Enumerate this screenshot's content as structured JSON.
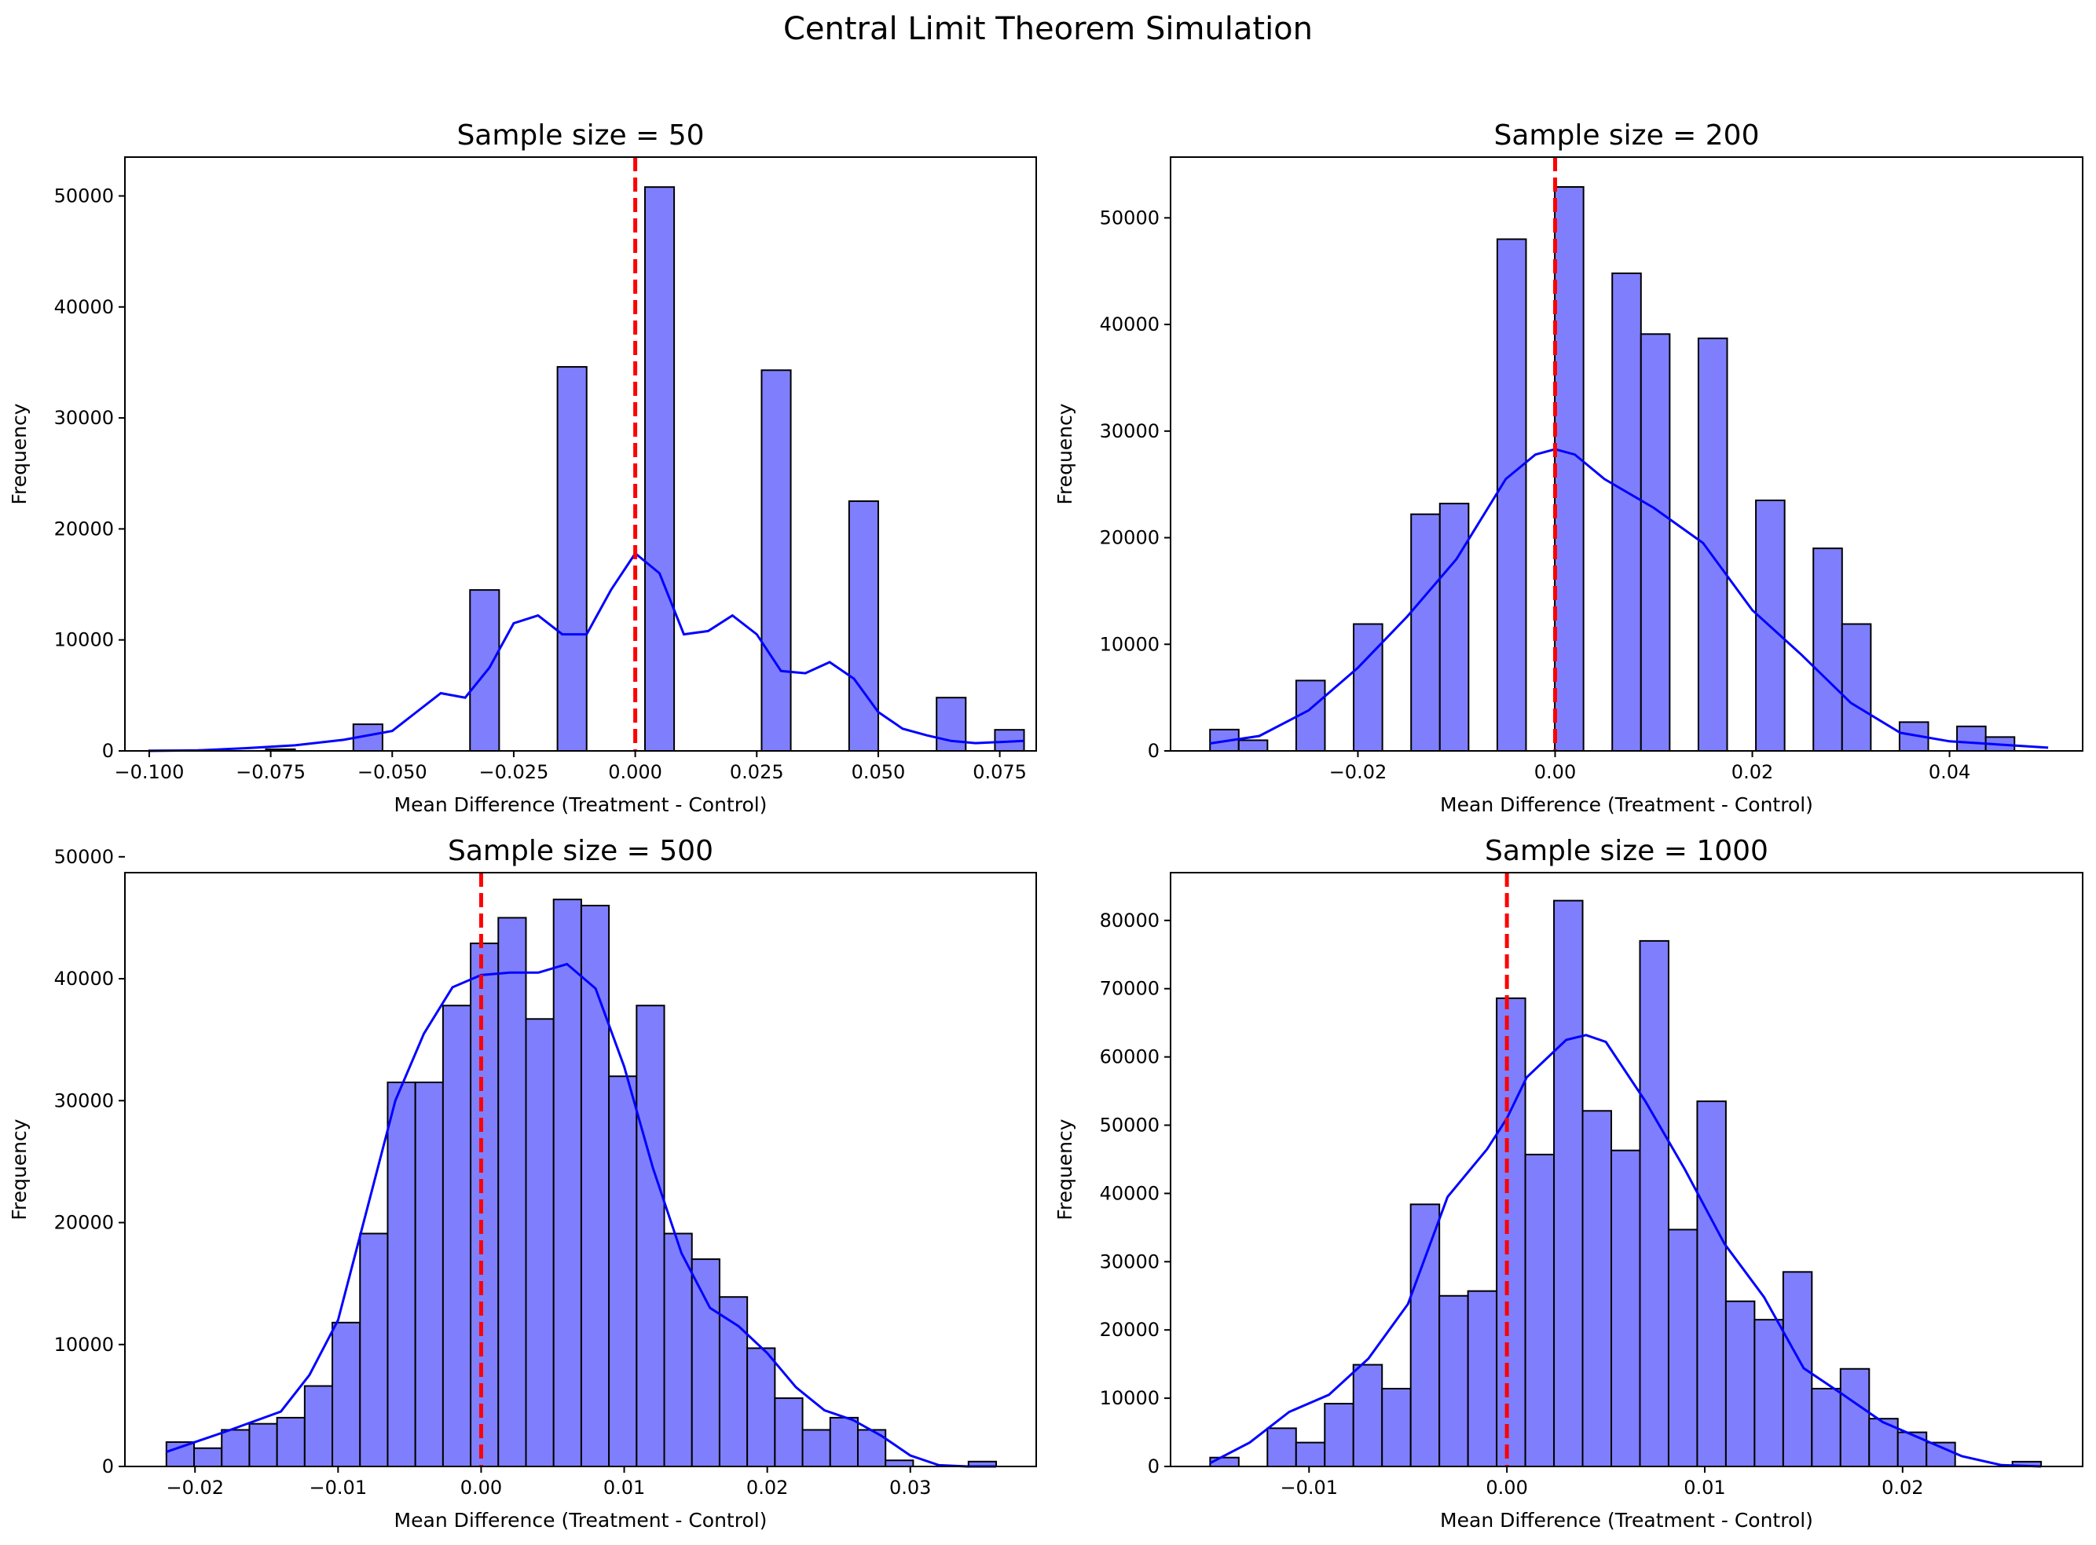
{
  "suptitle": "Central Limit Theorem Simulation",
  "colors": {
    "bar_fill": "#7f7ffe",
    "bar_edge": "#000000",
    "kde_line": "#0000ff",
    "zero_line": "#ff0000"
  },
  "chart_data": [
    {
      "type": "bar",
      "title": "Sample size = 50",
      "xlabel": "Mean Difference (Treatment - Control)",
      "ylabel": "Frequency",
      "xlim": [
        -0.105,
        0.0825
      ],
      "ylim": [
        0,
        53500
      ],
      "xticks": [
        -0.1,
        -0.075,
        -0.05,
        -0.025,
        0.0,
        0.025,
        0.05,
        0.075
      ],
      "xtick_labels": [
        "−0.100",
        "−0.075",
        "−0.050",
        "−0.025",
        "0.000",
        "0.025",
        "0.050",
        "0.075"
      ],
      "yticks": [
        0,
        10000,
        20000,
        30000,
        40000,
        50000
      ],
      "ytick_labels": [
        "0",
        "10000",
        "20000",
        "30000",
        "40000",
        "50000"
      ],
      "bins": {
        "start": -0.1,
        "end": 0.08,
        "count": 30
      },
      "counts": [
        50,
        0,
        0,
        0,
        150,
        0,
        0,
        2400,
        0,
        0,
        0,
        14500,
        0,
        0,
        34600,
        0,
        0,
        50800,
        0,
        0,
        0,
        34300,
        0,
        0,
        22500,
        0,
        0,
        4800,
        0,
        1900
      ],
      "kde_x": [
        -0.1,
        -0.09,
        -0.08,
        -0.07,
        -0.06,
        -0.05,
        -0.045,
        -0.04,
        -0.035,
        -0.03,
        -0.025,
        -0.02,
        -0.015,
        -0.01,
        -0.005,
        0.0,
        0.005,
        0.01,
        0.015,
        0.02,
        0.025,
        0.03,
        0.035,
        0.04,
        0.045,
        0.05,
        0.055,
        0.06,
        0.065,
        0.07,
        0.075,
        0.08
      ],
      "kde_y": [
        0,
        50,
        250,
        500,
        1000,
        1800,
        3500,
        5200,
        4800,
        7500,
        11500,
        12200,
        10500,
        10500,
        14500,
        17800,
        16000,
        10500,
        10800,
        12200,
        10500,
        7200,
        7000,
        8000,
        6500,
        3500,
        2000,
        1400,
        900,
        700,
        800,
        900
      ],
      "vline_x": 0.0
    },
    {
      "type": "bar",
      "title": "Sample size = 200",
      "xlabel": "Mean Difference (Treatment - Control)",
      "ylabel": "Frequency",
      "xlim": [
        -0.039,
        0.0535
      ],
      "ylim": [
        0,
        55700
      ],
      "xticks": [
        -0.02,
        0.0,
        0.02,
        0.04
      ],
      "xtick_labels": [
        "−0.02",
        "0.00",
        "0.02",
        "0.04"
      ],
      "yticks": [
        0,
        10000,
        20000,
        30000,
        40000,
        50000
      ],
      "ytick_labels": [
        "0",
        "10000",
        "20000",
        "30000",
        "40000",
        "50000"
      ],
      "bins": {
        "start": -0.035,
        "end": 0.0495,
        "count": 29
      },
      "counts": [
        2000,
        1000,
        0,
        6600,
        0,
        11900,
        0,
        22200,
        23200,
        0,
        48000,
        0,
        52900,
        0,
        44800,
        39100,
        0,
        38700,
        0,
        23500,
        0,
        19000,
        11900,
        0,
        2700,
        0,
        2300,
        1300,
        0
      ],
      "kde_x": [
        -0.035,
        -0.03,
        -0.025,
        -0.02,
        -0.015,
        -0.01,
        -0.005,
        -0.002,
        0.0,
        0.002,
        0.005,
        0.01,
        0.015,
        0.02,
        0.025,
        0.03,
        0.035,
        0.04,
        0.045,
        0.05
      ],
      "kde_y": [
        700,
        1400,
        3800,
        7800,
        12600,
        18000,
        25500,
        27800,
        28300,
        27800,
        25500,
        22800,
        19500,
        13200,
        9000,
        4500,
        1700,
        900,
        600,
        300
      ],
      "vline_x": 0.0
    },
    {
      "type": "bar",
      "title": "Sample size = 500",
      "xlabel": "Mean Difference (Treatment - Control)",
      "ylabel": "Frequency",
      "xlim": [
        -0.0249,
        0.0388
      ],
      "ylim": [
        0,
        48700
      ],
      "xticks": [
        -0.02,
        -0.01,
        0.0,
        0.01,
        0.02,
        0.03
      ],
      "xtick_labels": [
        "−0.02",
        "−0.01",
        "0.00",
        "0.01",
        "0.02",
        "0.03"
      ],
      "yticks": [
        0,
        10000,
        20000,
        30000,
        40000,
        50000
      ],
      "ytick_labels": [
        "0",
        "10000",
        "20000",
        "30000",
        "40000",
        "50000"
      ],
      "bins": {
        "start": -0.022,
        "end": 0.036,
        "count": 30
      },
      "counts": [
        2000,
        1500,
        3000,
        3500,
        4000,
        6600,
        11800,
        19100,
        31500,
        31500,
        37800,
        42900,
        45000,
        36700,
        46500,
        46000,
        32000,
        37800,
        19100,
        17000,
        13900,
        9700,
        5600,
        3000,
        4000,
        3000,
        500,
        0,
        0,
        400
      ],
      "kde_x": [
        -0.022,
        -0.018,
        -0.014,
        -0.012,
        -0.01,
        -0.008,
        -0.006,
        -0.004,
        -0.002,
        0.0,
        0.002,
        0.004,
        0.006,
        0.008,
        0.01,
        0.012,
        0.014,
        0.016,
        0.018,
        0.02,
        0.022,
        0.024,
        0.026,
        0.028,
        0.03,
        0.032,
        0.034,
        0.036
      ],
      "kde_y": [
        1200,
        2800,
        4500,
        7500,
        12000,
        21000,
        30000,
        35500,
        39300,
        40300,
        40500,
        40500,
        41200,
        39200,
        32800,
        24500,
        17500,
        13000,
        11500,
        9300,
        6500,
        4600,
        3800,
        2500,
        900,
        100,
        0,
        0
      ],
      "vline_x": 0.0
    },
    {
      "type": "bar",
      "title": "Sample size = 1000",
      "xlabel": "Mean Difference (Treatment - Control)",
      "ylabel": "Frequency",
      "xlim": [
        -0.017,
        0.0291
      ],
      "ylim": [
        0,
        87000
      ],
      "xticks": [
        -0.01,
        0.0,
        0.01,
        0.02
      ],
      "xtick_labels": [
        "−0.01",
        "0.00",
        "0.01",
        "0.02"
      ],
      "yticks": [
        0,
        10000,
        20000,
        30000,
        40000,
        50000,
        60000,
        70000,
        80000
      ],
      "ytick_labels": [
        "0",
        "10000",
        "20000",
        "30000",
        "40000",
        "50000",
        "60000",
        "70000",
        "80000"
      ],
      "bins": {
        "start": -0.015,
        "end": 0.027,
        "count": 29
      },
      "counts": [
        1300,
        0,
        5600,
        3500,
        9200,
        14900,
        11400,
        38400,
        25000,
        25700,
        68600,
        45700,
        82900,
        52100,
        46300,
        77000,
        34700,
        53500,
        24200,
        21500,
        28500,
        11400,
        14300,
        7000,
        5000,
        3500,
        0,
        0,
        700
      ],
      "kde_x": [
        -0.015,
        -0.013,
        -0.011,
        -0.009,
        -0.007,
        -0.005,
        -0.003,
        -0.001,
        0.0,
        0.001,
        0.003,
        0.004,
        0.005,
        0.007,
        0.009,
        0.011,
        0.013,
        0.015,
        0.017,
        0.019,
        0.021,
        0.023,
        0.025,
        0.027
      ],
      "kde_y": [
        500,
        3500,
        8000,
        10500,
        15800,
        23800,
        39500,
        46500,
        51000,
        57000,
        62500,
        63200,
        62200,
        53500,
        43500,
        32600,
        24800,
        14400,
        10500,
        6500,
        4000,
        1500,
        200,
        0
      ],
      "vline_x": 0.0
    }
  ]
}
